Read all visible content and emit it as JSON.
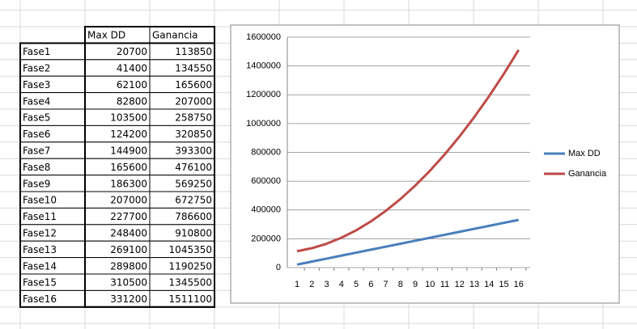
{
  "table": {
    "header": [
      "Max DD",
      "Ganancia"
    ],
    "rows": [
      [
        "Fase1",
        20700,
        113850
      ],
      [
        "Fase2",
        41400,
        134550
      ],
      [
        "Fase3",
        62100,
        165600
      ],
      [
        "Fase4",
        82800,
        207000
      ],
      [
        "Fase5",
        103500,
        258750
      ],
      [
        "Fase6",
        124200,
        320850
      ],
      [
        "Fase7",
        144900,
        393300
      ],
      [
        "Fase8",
        165600,
        476100
      ],
      [
        "Fase9",
        186300,
        569250
      ],
      [
        "Fase10",
        207000,
        672750
      ],
      [
        "Fase11",
        227700,
        786600
      ],
      [
        "Fase12",
        248400,
        910800
      ],
      [
        "Fase13",
        269100,
        1045350
      ],
      [
        "Fase14",
        289800,
        1190250
      ],
      [
        "Fase15",
        310500,
        1345500
      ],
      [
        "Fase16",
        331200,
        1511100
      ]
    ]
  },
  "chart_data": {
    "type": "line",
    "categories": [
      "1",
      "2",
      "3",
      "4",
      "5",
      "6",
      "7",
      "8",
      "9",
      "10",
      "11",
      "12",
      "13",
      "14",
      "15",
      "16"
    ],
    "series": [
      {
        "name": "Max DD",
        "color": "#4a7ebb",
        "values": [
          20700,
          41400,
          62100,
          82800,
          103500,
          124200,
          144900,
          165600,
          186300,
          207000,
          227700,
          248400,
          269100,
          289800,
          310500,
          331200
        ]
      },
      {
        "name": "Ganancia",
        "color": "#be4b48",
        "values": [
          113850,
          134550,
          165600,
          207000,
          258750,
          320850,
          393300,
          476100,
          569250,
          672750,
          786600,
          910800,
          1045350,
          1190250,
          1345500,
          1511100
        ]
      }
    ],
    "ylim": [
      0,
      1600000
    ],
    "yticks": [
      0,
      200000,
      400000,
      600000,
      800000,
      1000000,
      1200000,
      1400000,
      1600000
    ],
    "grid": true,
    "legend": "right"
  }
}
